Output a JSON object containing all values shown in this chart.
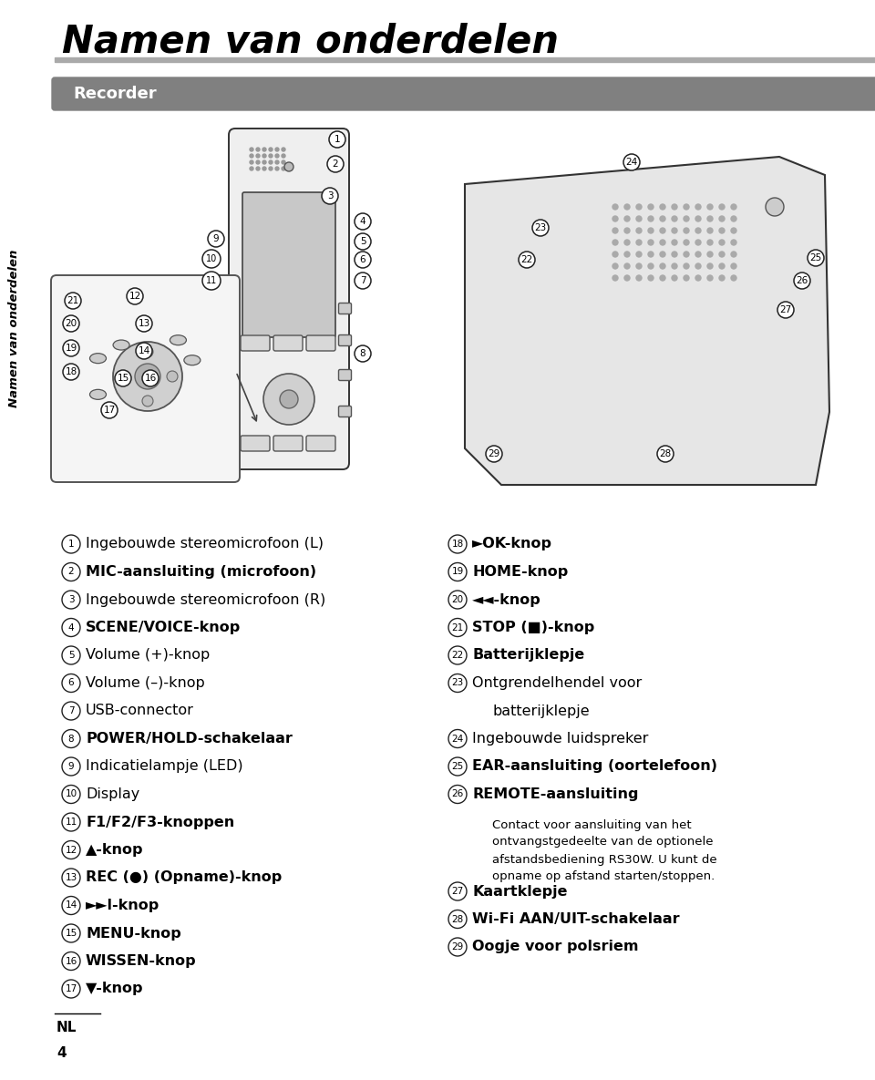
{
  "title": "Namen van onderdelen",
  "section_label": "Recorder",
  "sidebar_text": "Namen van onderdelen",
  "footer_left": "NL",
  "footer_num": "4",
  "left_items": [
    {
      "num": "1",
      "bold": false,
      "text": "Ingebouwde stereomicrofoon (L)"
    },
    {
      "num": "2",
      "bold": true,
      "text": "MIC-aansluiting (microfoon)"
    },
    {
      "num": "3",
      "bold": false,
      "text": "Ingebouwde stereomicrofoon (R)"
    },
    {
      "num": "4",
      "bold": true,
      "text": "SCENE/VOICE-knop"
    },
    {
      "num": "5",
      "bold": false,
      "text": "Volume (+)-knop"
    },
    {
      "num": "6",
      "bold": false,
      "text": "Volume (–)-knop"
    },
    {
      "num": "7",
      "bold": false,
      "text": "USB-connector"
    },
    {
      "num": "8",
      "bold": true,
      "text": "POWER/HOLD-schakelaar"
    },
    {
      "num": "9",
      "bold": false,
      "text": "Indicatielampje (LED)"
    },
    {
      "num": "10",
      "bold": false,
      "text": "Display"
    },
    {
      "num": "11",
      "bold": true,
      "text": "F1/F2/F3-knoppen"
    },
    {
      "num": "12",
      "bold": true,
      "text": "▲-knop"
    },
    {
      "num": "13",
      "bold": true,
      "text": "REC (●) (Opname)-knop"
    },
    {
      "num": "14",
      "bold": true,
      "text": "►►l-knop"
    },
    {
      "num": "15",
      "bold": true,
      "text": "MENU-knop"
    },
    {
      "num": "16",
      "bold": true,
      "text": "WISSEN-knop"
    },
    {
      "num": "17",
      "bold": true,
      "text": "▼-knop"
    }
  ],
  "right_items": [
    {
      "num": "18",
      "bold": true,
      "text": "►OK-knop"
    },
    {
      "num": "19",
      "bold": true,
      "text": "HOME-knop"
    },
    {
      "num": "20",
      "bold": true,
      "text": "◄◄-knop"
    },
    {
      "num": "21",
      "bold": true,
      "text": "STOP (■)-knop"
    },
    {
      "num": "22",
      "bold": true,
      "text": "Batterijklepje"
    },
    {
      "num": "23",
      "bold": false,
      "text": "Ontgrendelhendel voor",
      "text2": "batterijklepje"
    },
    {
      "num": "24",
      "bold": false,
      "text": "Ingebouwde luidspreker"
    },
    {
      "num": "25",
      "bold": true,
      "text": "EAR-aansluiting (oortelefoon)"
    },
    {
      "num": "26",
      "bold": true,
      "text": "REMOTE-aansluiting"
    },
    {
      "num": "27",
      "bold": true,
      "text": "Kaartklepje"
    },
    {
      "num": "28",
      "bold": true,
      "text": "Wi-Fi AAN/UIT-schakelaar"
    },
    {
      "num": "29",
      "bold": true,
      "text": "Oogje voor polsriem"
    }
  ],
  "note_26_lines": [
    "Contact voor aansluiting van het",
    "ontvangstgedeelte van de optionele",
    "afstandsbediening RS30W. U kunt de",
    "opname op afstand starten/stoppen."
  ],
  "bg_color": "#ffffff",
  "title_color": "#000000",
  "section_bg": "#808080",
  "section_text_color": "#ffffff",
  "sidebar_color": "#000000",
  "line_color": "#aaaaaa"
}
